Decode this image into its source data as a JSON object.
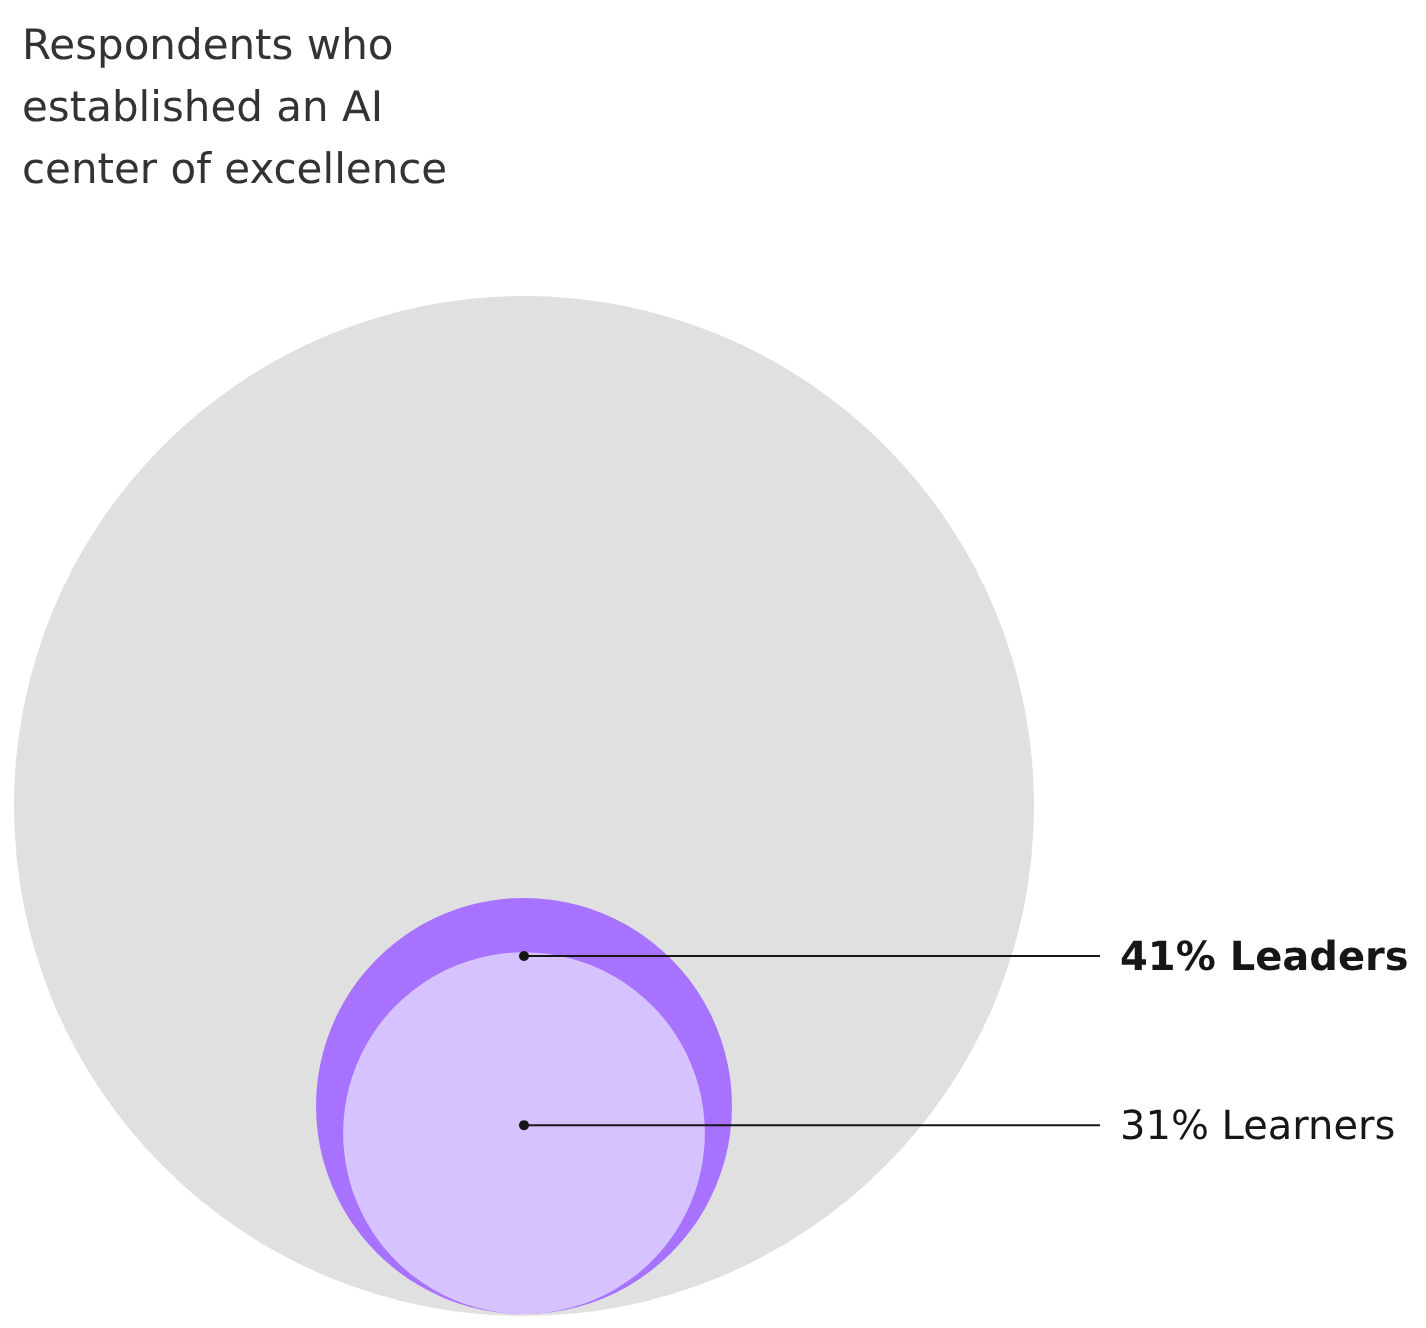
{
  "chart_data": {
    "type": "other",
    "title": "Respondents who established an AI center of excellence",
    "categories": [
      "Leaders",
      "Learners"
    ],
    "values": [
      41,
      31
    ],
    "value_labels": [
      "41%",
      "31%"
    ],
    "colors": [
      "#a772ff",
      "#d5c2ff"
    ]
  }
}
